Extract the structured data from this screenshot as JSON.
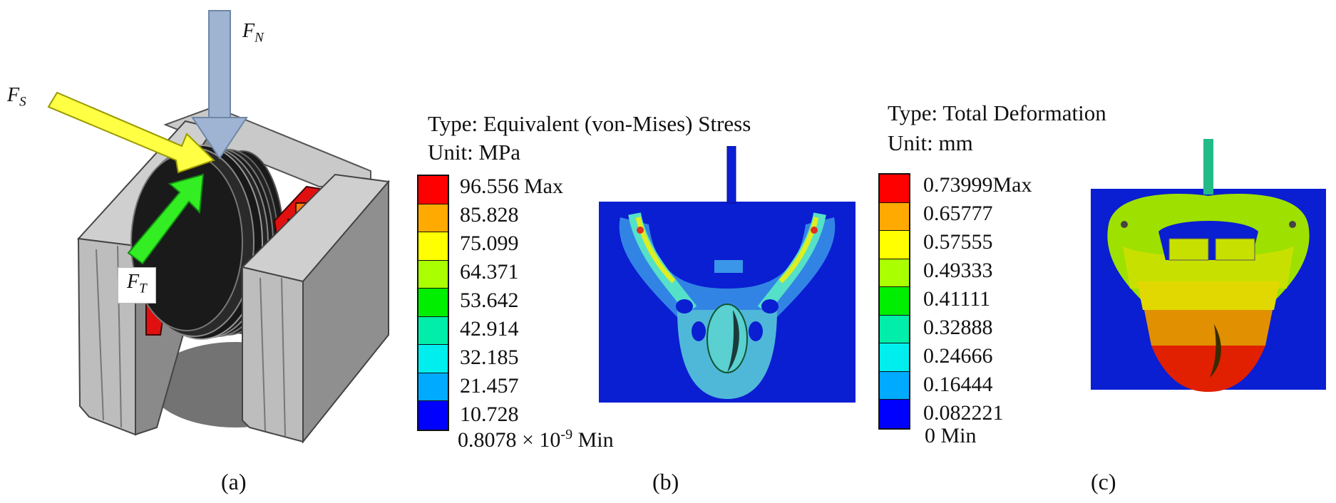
{
  "panel_a": {
    "caption": "(a)",
    "force_labels": {
      "normal": {
        "base": "F",
        "sub": "N"
      },
      "shear": {
        "base": "F",
        "sub": "S"
      },
      "tangential": {
        "base": "F",
        "sub": "T"
      }
    }
  },
  "panel_b": {
    "caption": "(b)",
    "type_line": "Type: Equivalent (von-Mises) Stress",
    "unit_line": "Unit: MPa",
    "legend": [
      "96.556 Max",
      "85.828",
      "75.099",
      "64.371",
      "53.642",
      "42.914",
      "32.185",
      "21.457",
      "10.728"
    ],
    "min_label": "0.8078 × 10",
    "min_exp": "-9",
    "min_suffix": " Min"
  },
  "panel_c": {
    "caption": "(c)",
    "type_line": "Type: Total Deformation",
    "unit_line": "Unit: mm",
    "legend": [
      "0.73999Max",
      "0.65777",
      "0.57555",
      "0.49333",
      "0.41111",
      "0.32888",
      "0.24666",
      "0.16444",
      "0.082221"
    ],
    "min_label": "0 Min"
  },
  "colors": {
    "scale": [
      "#ff0000",
      "#ffaa00",
      "#ffff00",
      "#aaff00",
      "#00ee00",
      "#00eeaa",
      "#00eeee",
      "#00aaff",
      "#0000ff"
    ],
    "force_normal": "#9fb4d2",
    "force_shear": "#ffff44",
    "force_tangential": "#33ee22"
  }
}
